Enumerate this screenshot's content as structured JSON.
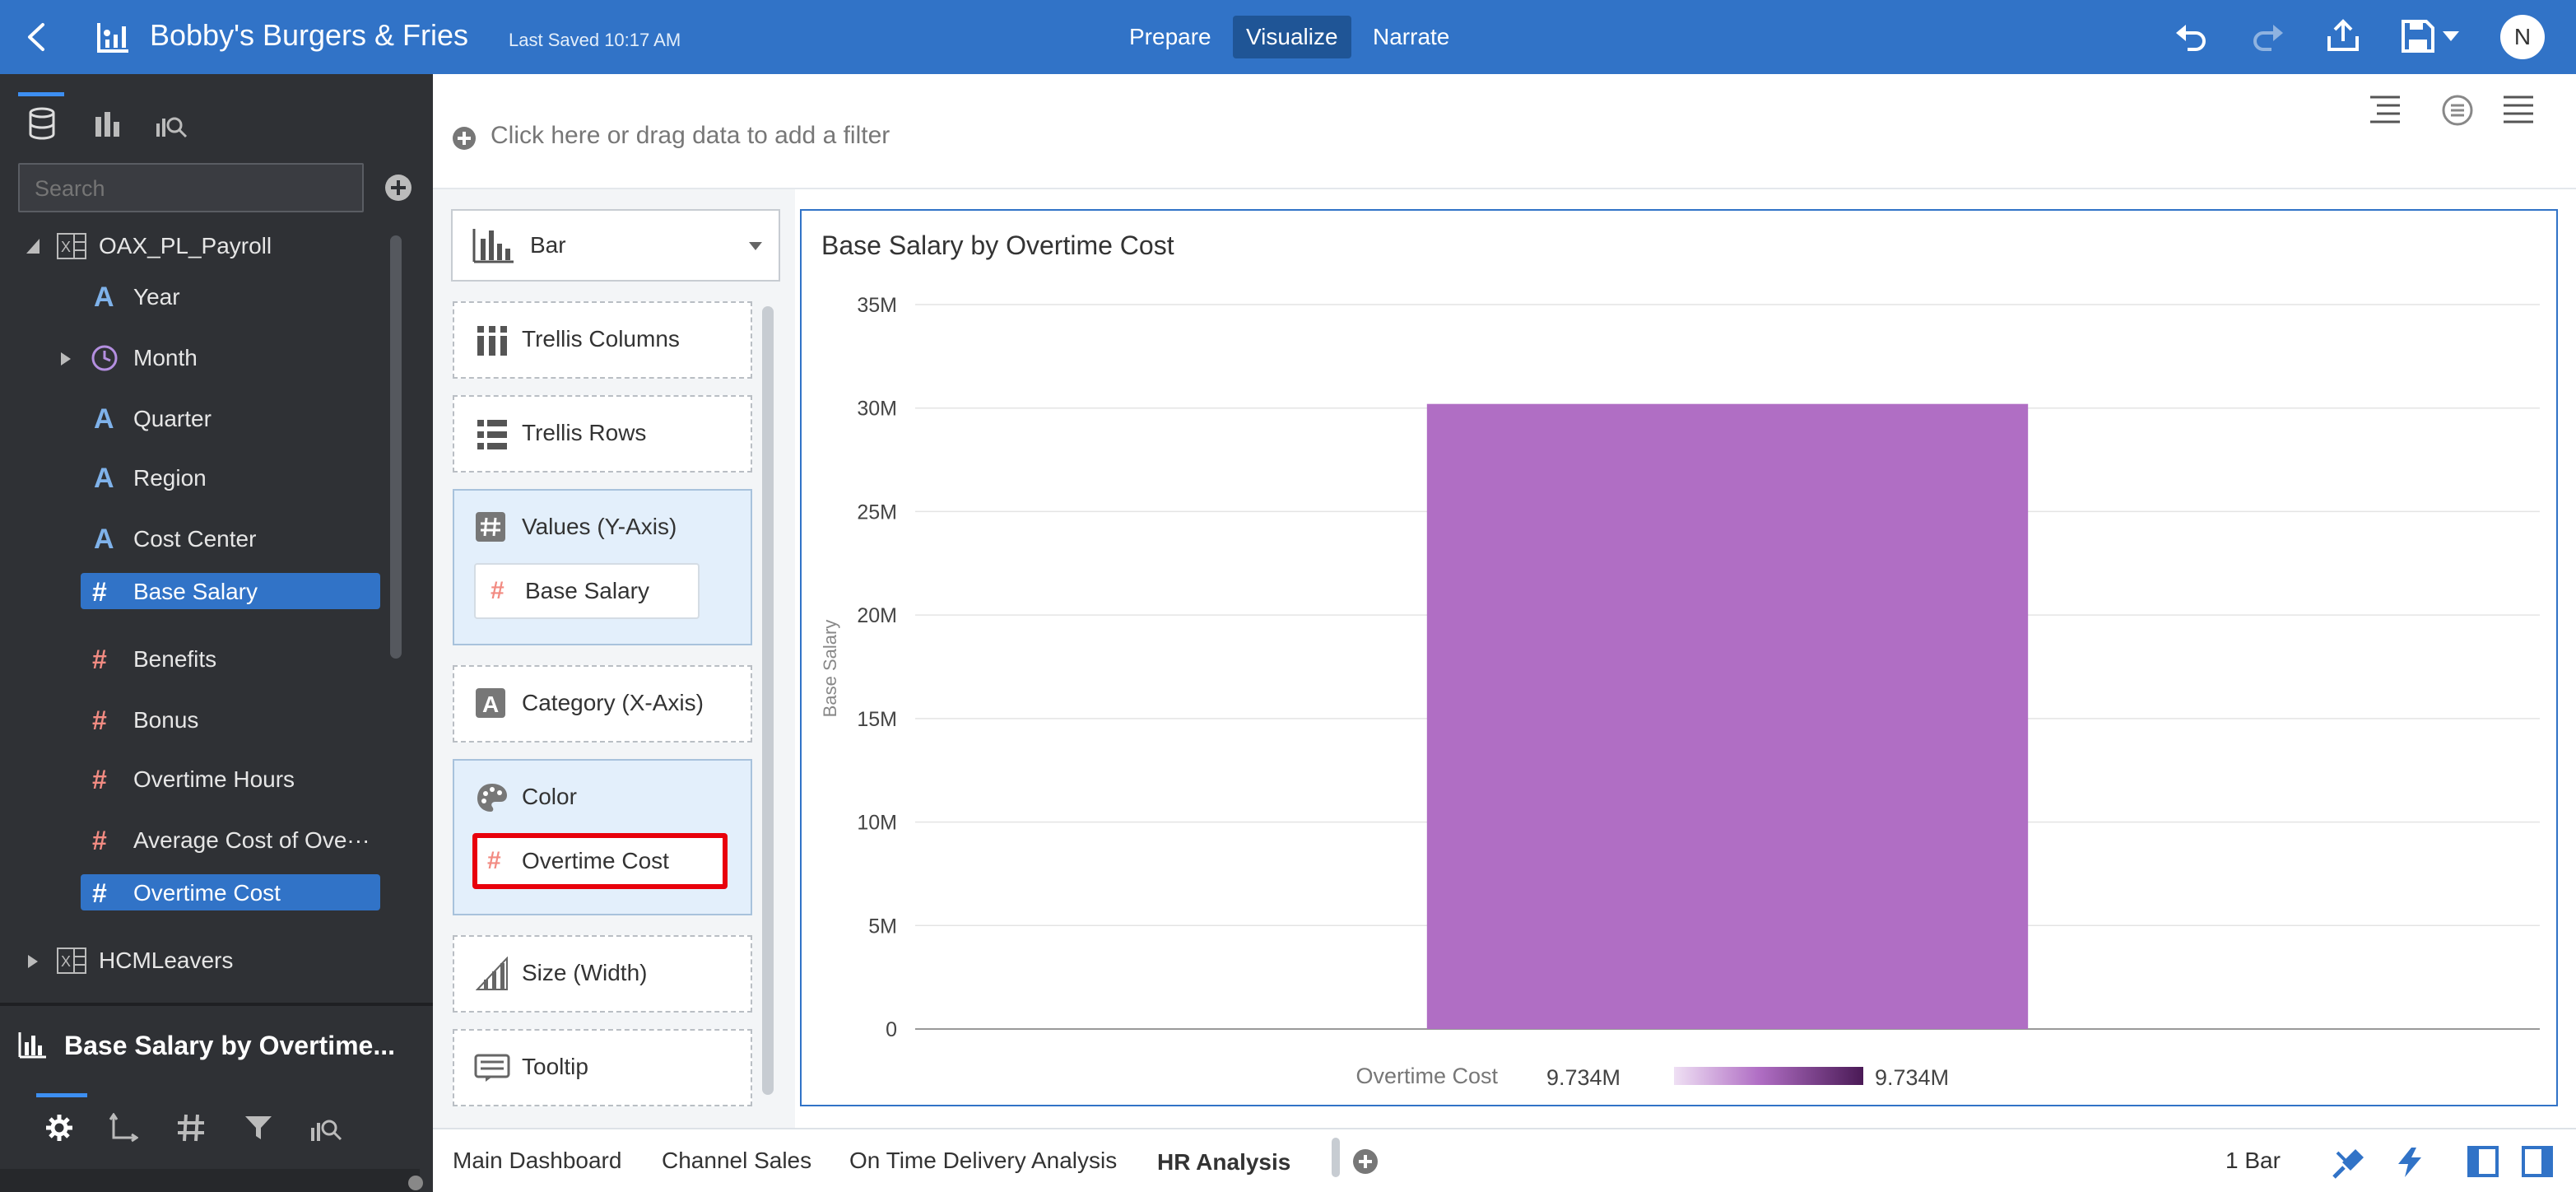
{
  "header": {
    "back_icon": "chevron-left-icon",
    "app_icon": "visualization-icon",
    "title": "Bobby's Burgers & Fries",
    "last_saved": "Last Saved 10:17 AM",
    "modes": [
      {
        "label": "Prepare",
        "active": false
      },
      {
        "label": "Visualize",
        "active": true
      },
      {
        "label": "Narrate",
        "active": false
      }
    ],
    "user_initial": "N",
    "colors": {
      "bar": "#3173c7",
      "active_tab": "#1f5596"
    }
  },
  "sidebar": {
    "search_placeholder": "Search",
    "datasets": [
      {
        "name": "OAX_PL_Payroll",
        "expanded": true,
        "columns": [
          {
            "label": "Year",
            "type": "attribute",
            "selected": false
          },
          {
            "label": "Month",
            "type": "time",
            "selected": false
          },
          {
            "label": "Quarter",
            "type": "attribute",
            "selected": false
          },
          {
            "label": "Region",
            "type": "attribute",
            "selected": false
          },
          {
            "label": "Cost Center",
            "type": "attribute",
            "selected": false
          },
          {
            "label": "Base Salary",
            "type": "measure",
            "selected": true
          },
          {
            "label": "Benefits",
            "type": "measure",
            "selected": false
          },
          {
            "label": "Bonus",
            "type": "measure",
            "selected": false
          },
          {
            "label": "Overtime Hours",
            "type": "measure",
            "selected": false
          },
          {
            "label": "Average Cost of Ove···",
            "type": "measure",
            "selected": false
          },
          {
            "label": "Overtime Cost",
            "type": "measure",
            "selected": true
          }
        ]
      },
      {
        "name": "HCMLeavers",
        "expanded": false
      }
    ],
    "properties_title": "Base Salary by Overtime..."
  },
  "filter": {
    "add_text": "Click here or drag data to add a filter"
  },
  "grammar": {
    "chart_type": "Bar",
    "trellis_columns": "Trellis Columns",
    "trellis_rows": "Trellis Rows",
    "values_label": "Values (Y-Axis)",
    "values_item": "Base Salary",
    "category_label": "Category (X-Axis)",
    "color_label": "Color",
    "color_item": "Overtime Cost",
    "size_label": "Size (Width)",
    "tooltip_label": "Tooltip"
  },
  "chart_data": {
    "type": "bar",
    "title": "Base Salary by Overtime Cost",
    "ylabel": "Base Salary",
    "xlabel": "",
    "categories": [
      ""
    ],
    "values": [
      30200000
    ],
    "ylim": [
      0,
      35000000
    ],
    "yticks": [
      {
        "value": 0,
        "label": "0"
      },
      {
        "value": 5000000,
        "label": "5M"
      },
      {
        "value": 10000000,
        "label": "10M"
      },
      {
        "value": 15000000,
        "label": "15M"
      },
      {
        "value": 20000000,
        "label": "20M"
      },
      {
        "value": 25000000,
        "label": "25M"
      },
      {
        "value": 30000000,
        "label": "30M"
      },
      {
        "value": 35000000,
        "label": "35M"
      }
    ],
    "grid": true,
    "bar_color": "#b06ec4",
    "legend": {
      "title": "Overtime Cost",
      "min_label": "9.734M",
      "max_label": "9.734M",
      "gradient_start": "#efe0f4",
      "gradient_end": "#4a1a56",
      "placement": "bottom-center"
    }
  },
  "bottom": {
    "tabs": [
      {
        "label": "Main Dashboard",
        "active": false
      },
      {
        "label": "Channel Sales",
        "active": false
      },
      {
        "label": "On Time Delivery Analysis",
        "active": false
      },
      {
        "label": "HR Analysis",
        "active": true
      }
    ],
    "bar_count": "1 Bar"
  }
}
